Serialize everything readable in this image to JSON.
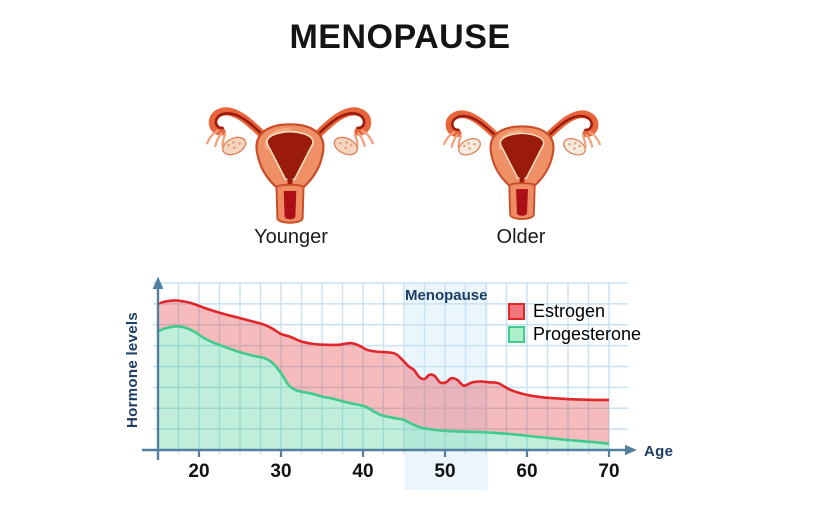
{
  "title": "MENOPAUSE",
  "figures": {
    "younger": {
      "label": "Younger"
    },
    "older": {
      "label": "Older"
    }
  },
  "chart_data": {
    "type": "area",
    "title": "",
    "xlabel": "Age",
    "ylabel": "Hormone levels",
    "x_range": [
      15,
      70
    ],
    "x_ticks": [
      20,
      30,
      40,
      50,
      60,
      70
    ],
    "grid": true,
    "grid_color": "#c7e2f3",
    "axis_color": "#54809f",
    "label_color": "#1c3d66",
    "tick_label_color": "#121212",
    "annotation": {
      "label": "Menopause",
      "x_start": 45.1,
      "x_end": 55.2,
      "band_color": "#ddeefa"
    },
    "legend_position": "top-right",
    "series": [
      {
        "name": "Estrogen",
        "line_color": "#e1262a",
        "fill_color": "rgba(229,57,62,0.34)",
        "swatch_fill": "#f0777b",
        "points": [
          [
            15,
            87.5
          ],
          [
            16,
            89
          ],
          [
            17.3,
            89.5
          ],
          [
            19,
            88
          ],
          [
            21,
            84.5
          ],
          [
            23,
            81.5
          ],
          [
            25,
            79
          ],
          [
            26.5,
            77
          ],
          [
            28,
            75
          ],
          [
            29,
            72.5
          ],
          [
            30,
            69.5
          ],
          [
            31,
            68
          ],
          [
            32.5,
            65
          ],
          [
            34,
            63.5
          ],
          [
            35.5,
            63
          ],
          [
            37,
            63
          ],
          [
            38.5,
            64
          ],
          [
            39.5,
            62.5
          ],
          [
            40.5,
            60
          ],
          [
            41.5,
            59
          ],
          [
            43,
            58.5
          ],
          [
            44,
            57.5
          ],
          [
            44.8,
            54
          ],
          [
            45.6,
            50
          ],
          [
            46.2,
            48
          ],
          [
            46.9,
            43.5
          ],
          [
            47.5,
            42.5
          ],
          [
            48.1,
            45
          ],
          [
            48.7,
            44.5
          ],
          [
            49.4,
            40.5
          ],
          [
            50.1,
            40.5
          ],
          [
            50.8,
            43
          ],
          [
            51.5,
            42
          ],
          [
            52.3,
            38.5
          ],
          [
            53.3,
            40.5
          ],
          [
            54.3,
            41
          ],
          [
            55.5,
            40.5
          ],
          [
            56.5,
            40
          ],
          [
            58,
            36
          ],
          [
            60,
            33
          ],
          [
            62,
            31.5
          ],
          [
            64,
            30.8
          ],
          [
            66,
            30.3
          ],
          [
            68,
            30
          ],
          [
            70,
            30
          ]
        ]
      },
      {
        "name": "Progesterone",
        "line_color": "#3ecb8c",
        "fill_color": "rgba(62,203,141,0.32)",
        "swatch_fill": "#aef0cc",
        "points": [
          [
            15,
            71
          ],
          [
            16,
            73
          ],
          [
            17.5,
            74
          ],
          [
            19,
            72
          ],
          [
            21,
            66
          ],
          [
            23,
            62
          ],
          [
            25,
            58.5
          ],
          [
            27,
            56
          ],
          [
            28,
            55
          ],
          [
            29,
            52
          ],
          [
            30,
            46
          ],
          [
            31,
            38.5
          ],
          [
            32,
            35.5
          ],
          [
            33.5,
            34
          ],
          [
            35,
            32
          ],
          [
            36.5,
            30.5
          ],
          [
            38,
            28.5
          ],
          [
            39.5,
            27
          ],
          [
            40.5,
            25.5
          ],
          [
            41.5,
            22.5
          ],
          [
            42.5,
            20.5
          ],
          [
            44,
            19
          ],
          [
            45,
            18
          ],
          [
            46,
            15.5
          ],
          [
            47,
            13.5
          ],
          [
            48,
            12.5
          ],
          [
            50,
            11.5
          ],
          [
            52,
            11
          ],
          [
            54,
            10.8
          ],
          [
            56,
            10.3
          ],
          [
            58,
            9.5
          ],
          [
            60,
            8.5
          ],
          [
            62,
            7.5
          ],
          [
            65,
            6
          ],
          [
            67.5,
            5
          ],
          [
            70,
            3.8
          ]
        ]
      }
    ]
  }
}
